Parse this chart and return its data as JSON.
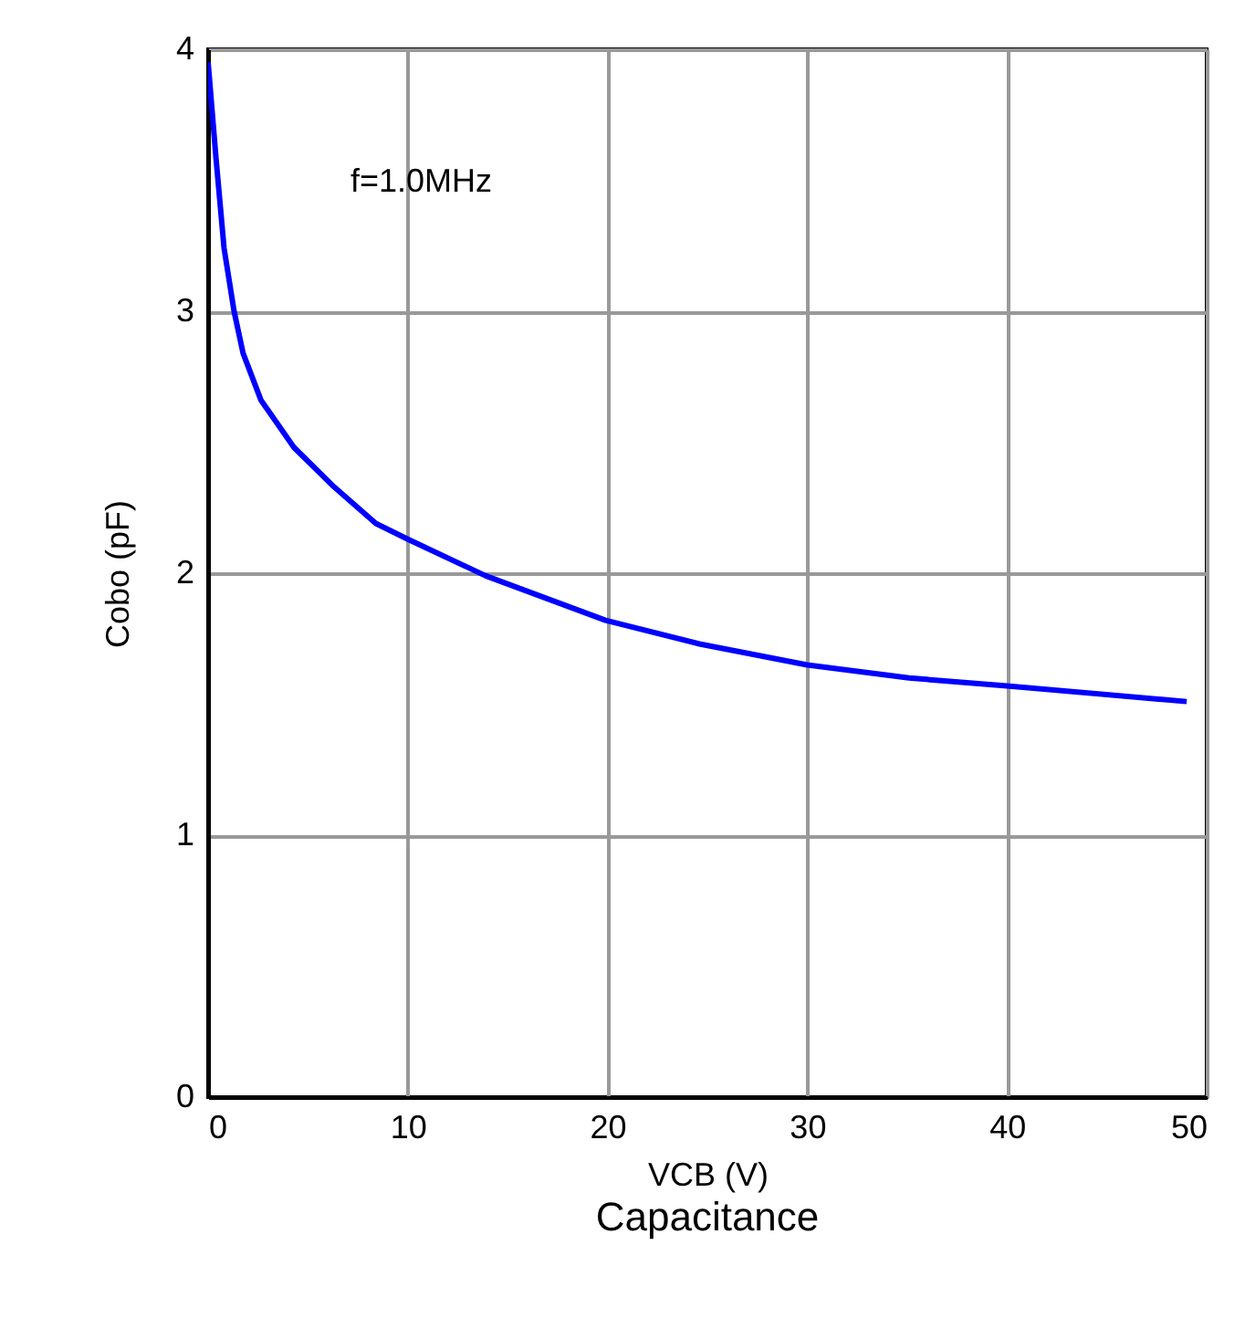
{
  "chart_data": {
    "type": "line",
    "title": "Capacitance",
    "xlabel": "VCB (V)",
    "ylabel": "Cobo (pF)",
    "annotations": [
      "f=1.0MHz"
    ],
    "x": [
      0,
      0.4,
      0.8,
      1.3,
      1.75,
      2.65,
      4.3,
      6.3,
      8.4,
      10,
      13.9,
      19.9,
      24.6,
      30,
      35.1,
      40,
      49
    ],
    "series": [
      {
        "color": "#0000ff",
        "values": [
          3.95,
          3.58,
          3.24,
          3.0,
          2.84,
          2.66,
          2.48,
          2.33,
          2.19,
          2.13,
          1.99,
          1.82,
          1.73,
          1.65,
          1.6,
          1.57,
          1.51
        ]
      }
    ],
    "xlim": [
      0,
      50
    ],
    "xticks": [
      0,
      10,
      20,
      30,
      40,
      50
    ],
    "ylim": [
      0,
      4
    ],
    "yticks": [
      0,
      1,
      2,
      3,
      4
    ],
    "grid": true,
    "marker": "none",
    "line_style": "solid"
  }
}
